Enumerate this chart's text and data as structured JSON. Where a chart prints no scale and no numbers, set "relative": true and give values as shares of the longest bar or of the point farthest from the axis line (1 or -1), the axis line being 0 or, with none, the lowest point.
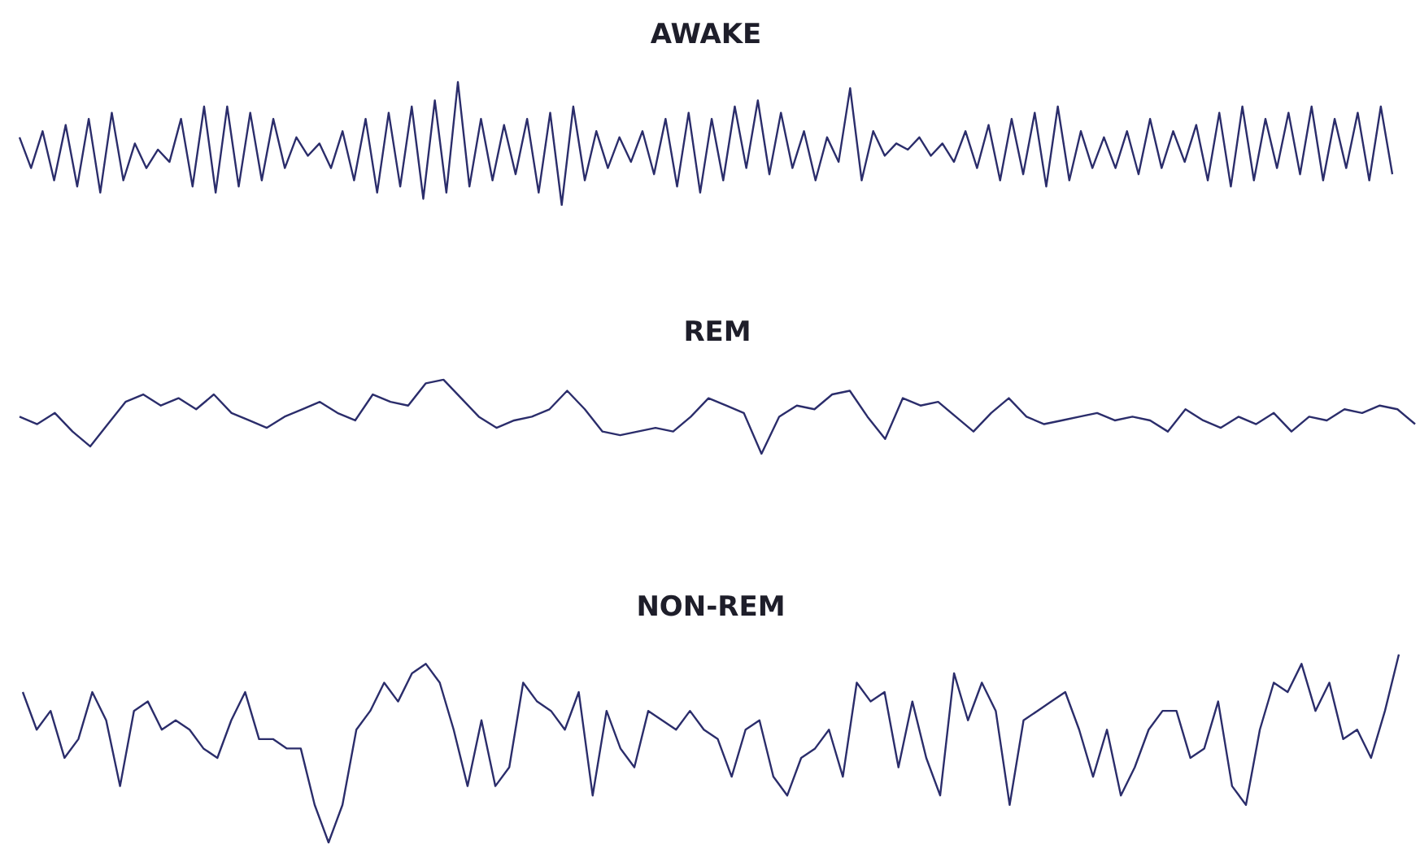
{
  "chart_data": [
    {
      "type": "line",
      "title": "AWAKE",
      "relative": true,
      "categories": [
        null,
        null,
        null,
        null,
        null,
        null,
        null,
        null,
        null,
        null,
        null,
        null,
        null,
        null,
        null,
        null,
        null,
        null,
        null,
        null,
        null,
        null,
        null,
        null,
        null,
        null,
        null,
        null,
        null,
        null,
        null,
        null,
        null,
        null,
        null,
        null,
        null,
        null,
        null,
        null,
        null,
        null,
        null,
        null,
        null,
        null,
        null,
        null,
        null,
        null,
        null,
        null,
        null,
        null,
        null,
        null,
        null,
        null,
        null,
        null,
        null,
        null,
        null,
        null,
        null,
        null,
        null,
        null,
        null,
        null,
        null,
        null,
        null,
        null,
        null,
        null,
        null,
        null,
        null,
        null,
        null,
        null,
        null,
        null,
        null,
        null,
        null,
        null,
        null,
        null,
        null,
        null,
        null,
        null,
        null,
        null,
        null,
        null,
        null,
        null,
        null,
        null,
        null,
        null,
        null,
        null,
        null,
        null,
        null,
        null,
        null,
        null,
        null,
        null,
        null,
        null,
        null,
        null,
        null,
        null
      ],
      "series": [
        {
          "color": "#2b2d6b",
          "values": [
            0.55,
            0.3,
            0.6,
            0.2,
            0.65,
            0.15,
            0.7,
            0.1,
            0.75,
            0.2,
            0.5,
            0.3,
            0.45,
            0.35,
            0.7,
            0.15,
            0.8,
            0.1,
            0.8,
            0.15,
            0.75,
            0.2,
            0.7,
            0.3,
            0.55,
            0.4,
            0.5,
            0.3,
            0.6,
            0.2,
            0.7,
            0.1,
            0.75,
            0.15,
            0.8,
            0.05,
            0.85,
            0.1,
            1,
            0.15,
            0.7,
            0.2,
            0.65,
            0.25,
            0.7,
            0.1,
            0.75,
            0,
            0.8,
            0.2,
            0.6,
            0.3,
            0.55,
            0.35,
            0.6,
            0.25,
            0.7,
            0.15,
            0.75,
            0.1,
            0.7,
            0.2,
            0.8,
            0.3,
            0.85,
            0.25,
            0.75,
            0.3,
            0.6,
            0.2,
            0.55,
            0.35,
            0.95,
            0.2,
            0.6,
            0.4,
            0.5,
            0.45,
            0.55,
            0.4,
            0.5,
            0.35,
            0.6,
            0.3,
            0.65,
            0.2,
            0.7,
            0.25,
            0.75,
            0.15,
            0.8,
            0.2,
            0.6,
            0.3,
            0.55,
            0.3,
            0.6,
            0.25,
            0.7,
            0.3,
            0.6,
            0.35,
            0.65,
            0.2,
            0.75,
            0.15,
            0.8,
            0.2,
            0.7,
            0.3,
            0.75,
            0.25,
            0.8,
            0.2,
            0.7,
            0.3,
            0.75,
            0.2,
            0.8,
            0.25
          ]
        }
      ]
    },
    {
      "type": "line",
      "title": "REM",
      "relative": true,
      "categories": [
        null,
        null,
        null,
        null,
        null,
        null,
        null,
        null,
        null,
        null,
        null,
        null,
        null,
        null,
        null,
        null,
        null,
        null,
        null,
        null,
        null,
        null,
        null,
        null,
        null,
        null,
        null,
        null,
        null,
        null,
        null,
        null,
        null,
        null,
        null,
        null,
        null,
        null,
        null,
        null,
        null,
        null,
        null,
        null,
        null,
        null,
        null,
        null,
        null,
        null,
        null,
        null,
        null,
        null,
        null,
        null,
        null,
        null,
        null,
        null,
        null,
        null,
        null,
        null,
        null,
        null,
        null,
        null,
        null,
        null,
        null,
        null,
        null,
        null,
        null,
        null,
        null,
        null,
        null,
        null
      ],
      "series": [
        {
          "color": "#2b2d6b",
          "values": [
            0.5,
            0.4,
            0.55,
            0.3,
            0.1,
            0.4,
            0.7,
            0.8,
            0.65,
            0.75,
            0.6,
            0.8,
            0.55,
            0.45,
            0.35,
            0.5,
            0.6,
            0.7,
            0.55,
            0.45,
            0.8,
            0.7,
            0.65,
            0.95,
            1,
            0.75,
            0.5,
            0.35,
            0.45,
            0.5,
            0.6,
            0.85,
            0.6,
            0.3,
            0.25,
            0.3,
            0.35,
            0.3,
            0.5,
            0.75,
            0.65,
            0.55,
            0,
            0.5,
            0.65,
            0.6,
            0.8,
            0.85,
            0.5,
            0.2,
            0.75,
            0.65,
            0.7,
            0.5,
            0.3,
            0.55,
            0.75,
            0.5,
            0.4,
            0.45,
            0.5,
            0.55,
            0.45,
            0.5,
            0.45,
            0.3,
            0.6,
            0.45,
            0.35,
            0.5,
            0.4,
            0.55,
            0.3,
            0.5,
            0.45,
            0.6,
            0.55,
            0.65,
            0.6,
            0.4
          ]
        }
      ]
    },
    {
      "type": "line",
      "title": "NON-REM",
      "relative": true,
      "categories": [
        null,
        null,
        null,
        null,
        null,
        null,
        null,
        null,
        null,
        null,
        null,
        null,
        null,
        null,
        null,
        null,
        null,
        null,
        null,
        null,
        null,
        null,
        null,
        null,
        null,
        null,
        null,
        null,
        null,
        null,
        null,
        null,
        null,
        null,
        null,
        null,
        null,
        null,
        null,
        null,
        null,
        null,
        null,
        null,
        null,
        null,
        null,
        null,
        null,
        null,
        null,
        null,
        null,
        null,
        null,
        null,
        null,
        null,
        null,
        null,
        null,
        null,
        null,
        null,
        null,
        null,
        null,
        null,
        null,
        null,
        null,
        null,
        null,
        null,
        null,
        null,
        null,
        null,
        null,
        null,
        null,
        null,
        null,
        null,
        null,
        null,
        null,
        null,
        null,
        null,
        null,
        null,
        null,
        null,
        null,
        null,
        null,
        null,
        null,
        null
      ],
      "series": [
        {
          "color": "#2b2d6b",
          "values": [
            0.8,
            0.6,
            0.7,
            0.45,
            0.55,
            0.8,
            0.65,
            0.3,
            0.7,
            0.75,
            0.6,
            0.65,
            0.6,
            0.5,
            0.45,
            0.65,
            0.8,
            0.55,
            0.55,
            0.5,
            0.5,
            0.2,
            0,
            0.2,
            0.6,
            0.7,
            0.85,
            0.75,
            0.9,
            0.95,
            0.85,
            0.6,
            0.3,
            0.65,
            0.3,
            0.4,
            0.85,
            0.75,
            0.7,
            0.6,
            0.8,
            0.25,
            0.7,
            0.5,
            0.4,
            0.7,
            0.65,
            0.6,
            0.7,
            0.6,
            0.55,
            0.35,
            0.6,
            0.65,
            0.35,
            0.25,
            0.45,
            0.5,
            0.6,
            0.35,
            0.85,
            0.75,
            0.8,
            0.4,
            0.75,
            0.45,
            0.25,
            0.9,
            0.65,
            0.85,
            0.7,
            0.2,
            0.65,
            0.7,
            0.75,
            0.8,
            0.6,
            0.35,
            0.6,
            0.25,
            0.4,
            0.6,
            0.7,
            0.7,
            0.45,
            0.5,
            0.75,
            0.3,
            0.2,
            0.6,
            0.85,
            0.8,
            0.95,
            0.7,
            0.85,
            0.55,
            0.6,
            0.45,
            0.7,
            1
          ]
        }
      ]
    }
  ]
}
